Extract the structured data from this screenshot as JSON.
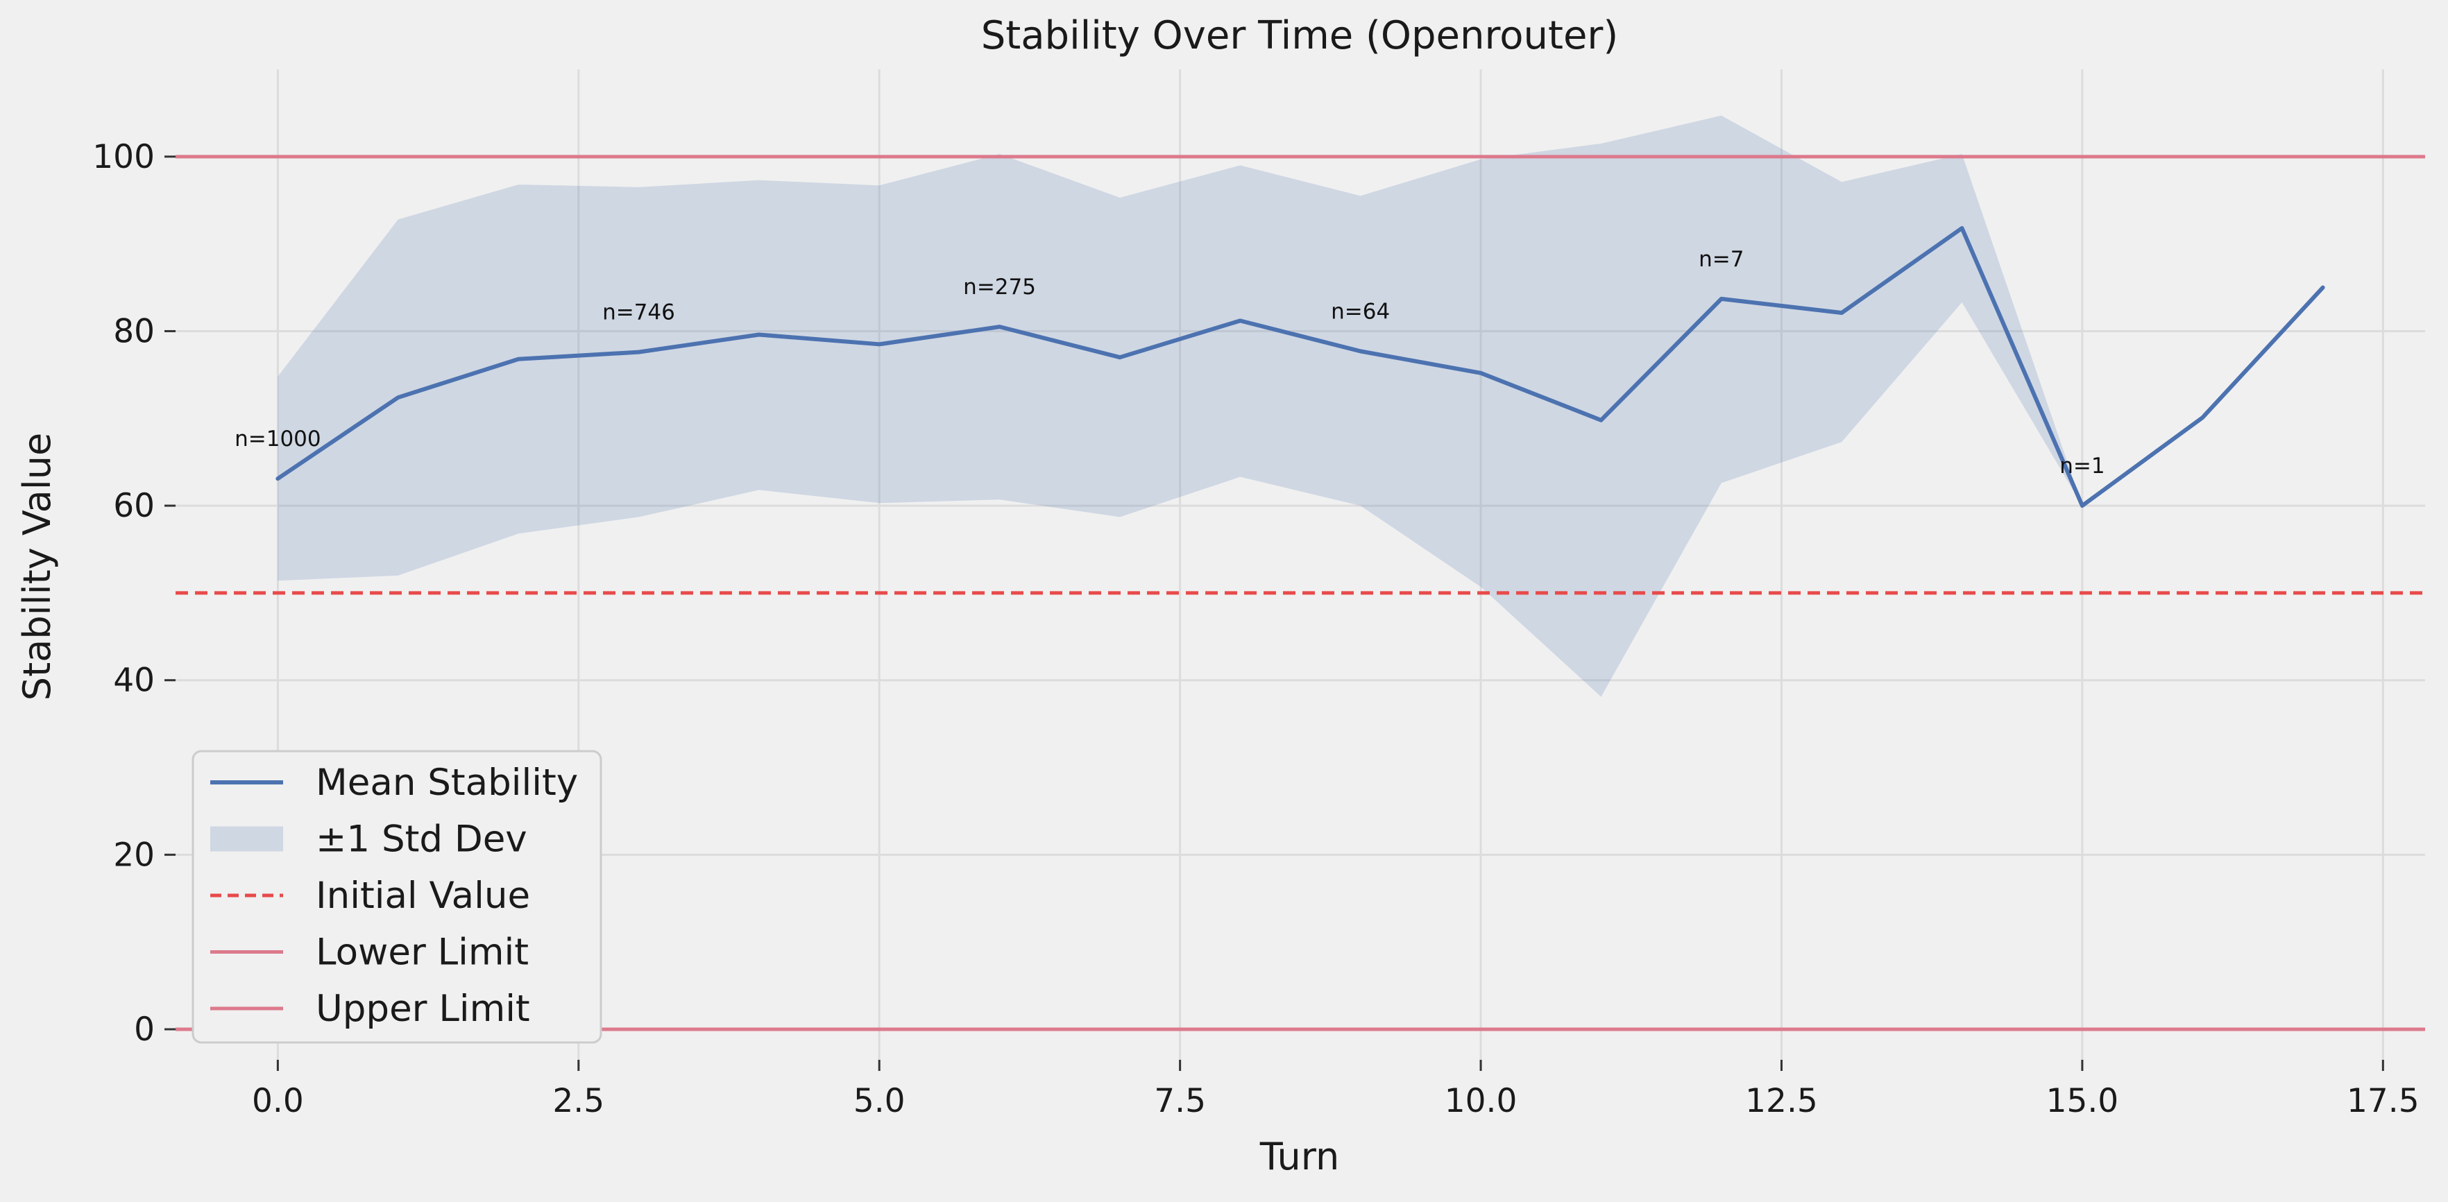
{
  "chart_data": {
    "type": "line",
    "title": "Stability Over Time (Openrouter)",
    "xlabel": "Turn",
    "ylabel": "Stability Value",
    "xlim": [
      -0.85,
      17.85
    ],
    "ylim": [
      -3.5,
      110
    ],
    "x_ticks": [
      0.0,
      2.5,
      5.0,
      7.5,
      10.0,
      12.5,
      15.0,
      17.5
    ],
    "x_tick_labels": [
      "0.0",
      "2.5",
      "5.0",
      "7.5",
      "10.0",
      "12.5",
      "15.0",
      "17.5"
    ],
    "y_ticks": [
      0,
      20,
      40,
      60,
      80,
      100
    ],
    "y_tick_labels": [
      "0",
      "20",
      "40",
      "60",
      "80",
      "100"
    ],
    "grid": true,
    "legend_position": "lower-left",
    "x": [
      0,
      1,
      2,
      3,
      4,
      5,
      6,
      7,
      8,
      9,
      10,
      11,
      12,
      13,
      14,
      15,
      16,
      17
    ],
    "series": [
      {
        "name": "Mean Stability",
        "kind": "line",
        "color": "#4c72b0",
        "values": [
          63.1,
          72.4,
          76.8,
          77.6,
          79.6,
          78.5,
          80.5,
          77.0,
          81.2,
          77.7,
          75.2,
          69.8,
          83.7,
          82.1,
          91.8,
          60.0,
          70.1,
          85.0
        ]
      },
      {
        "name": "±1 Std Dev",
        "kind": "band",
        "color": "#4c72b0",
        "opacity": 0.2,
        "upper": [
          74.8,
          92.8,
          96.8,
          96.5,
          97.3,
          96.7,
          100.3,
          95.3,
          99.0,
          95.5,
          99.7,
          101.5,
          104.7,
          97.1,
          100.3,
          60.0,
          null,
          null
        ],
        "lower": [
          51.4,
          52.0,
          56.8,
          58.7,
          61.8,
          60.3,
          60.7,
          58.7,
          63.3,
          60.0,
          50.7,
          38.1,
          62.6,
          67.3,
          83.3,
          60.0,
          null,
          null
        ]
      },
      {
        "name": "Initial Value",
        "kind": "hline",
        "y": 50,
        "color": "#e84a4a",
        "dashed": true
      },
      {
        "name": "Lower Limit",
        "kind": "hline",
        "y": 0,
        "color": "#dc7a8c",
        "dashed": false
      },
      {
        "name": "Upper Limit",
        "kind": "hline",
        "y": 100,
        "color": "#dc7a8c",
        "dashed": false
      }
    ],
    "annotations": [
      {
        "text": "n=1000",
        "x": 0,
        "y": 63.1
      },
      {
        "text": "n=746",
        "x": 3,
        "y": 77.6
      },
      {
        "text": "n=275",
        "x": 6,
        "y": 80.5
      },
      {
        "text": "n=64",
        "x": 9,
        "y": 77.7
      },
      {
        "text": "n=7",
        "x": 12,
        "y": 83.7
      },
      {
        "text": "n=1",
        "x": 15,
        "y": 60.0
      }
    ],
    "legend": [
      "Mean Stability",
      "±1 Std Dev",
      "Initial Value",
      "Lower Limit",
      "Upper Limit"
    ]
  }
}
